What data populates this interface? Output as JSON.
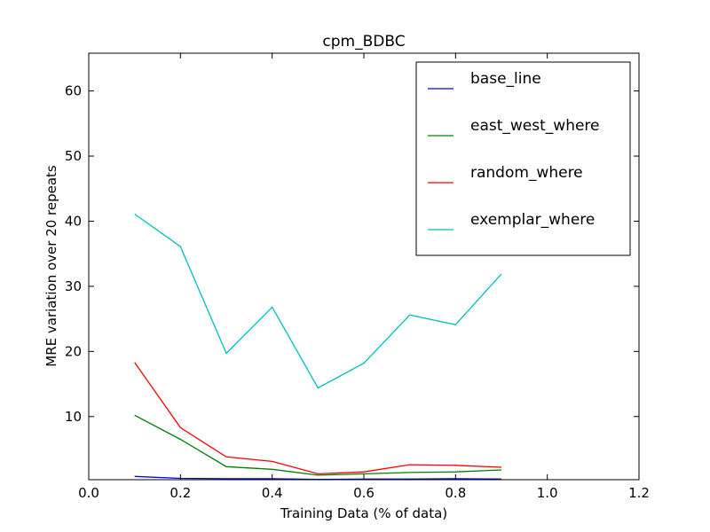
{
  "chart_data": {
    "type": "line",
    "title": "cpm_BDBC",
    "xlabel": "Training Data (% of data)",
    "ylabel": "MRE variation over 20 repeats",
    "xlim": [
      0.0,
      1.2
    ],
    "ylim": [
      0.3,
      65.8
    ],
    "x_ticks": [
      "0.0",
      "0.2",
      "0.4",
      "0.6",
      "0.8",
      "1.0",
      "1.2"
    ],
    "y_ticks": [
      "10",
      "20",
      "30",
      "40",
      "50",
      "60"
    ],
    "x": [
      0.1,
      0.2,
      0.3,
      0.4,
      0.5,
      0.6,
      0.7,
      0.8,
      0.9
    ],
    "legend_position": "top-right",
    "grid": false,
    "series": [
      {
        "name": "base_line",
        "color": "#0000ff",
        "values": [
          0.8,
          0.5,
          0.45,
          0.45,
          0.35,
          0.4,
          0.4,
          0.45,
          0.4
        ]
      },
      {
        "name": "east_west_where",
        "color": "#008000",
        "values": [
          10.2,
          6.5,
          2.3,
          1.9,
          1.0,
          1.2,
          1.4,
          1.5,
          1.8
        ]
      },
      {
        "name": "random_where",
        "color": "#ff0000",
        "values": [
          18.3,
          8.3,
          3.8,
          3.1,
          1.2,
          1.5,
          2.6,
          2.5,
          2.2
        ]
      },
      {
        "name": "exemplar_where",
        "color": "#00bfbf",
        "values": [
          41.1,
          36.1,
          19.7,
          26.8,
          14.4,
          18.2,
          25.6,
          24.1,
          31.9
        ]
      }
    ]
  }
}
